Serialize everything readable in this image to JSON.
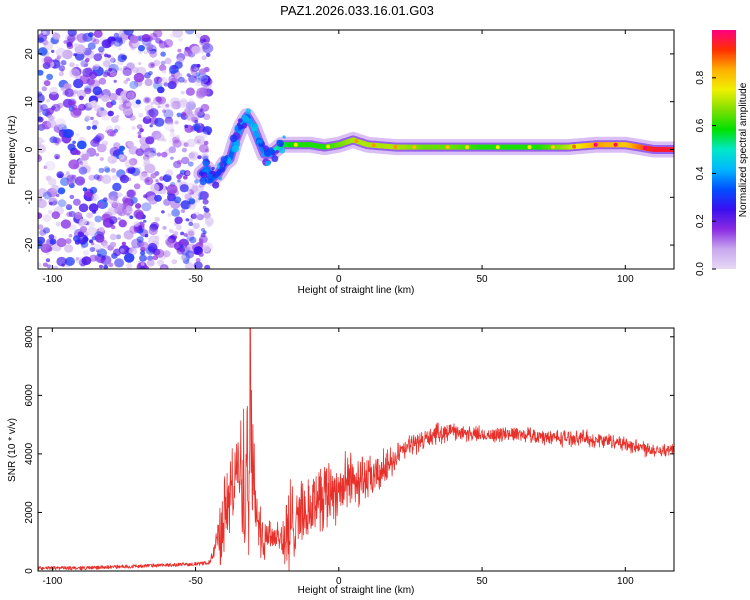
{
  "title": "PAZ1.2026.033.16.01.G03",
  "chart_data": [
    {
      "type": "heatmap",
      "panel": "top",
      "xlabel": "Height of straight line (km)",
      "ylabel": "Frequency (Hz)",
      "xlim": [
        -105,
        117
      ],
      "ylim": [
        -25,
        25
      ],
      "xticks": [
        -100,
        -50,
        0,
        50,
        100
      ],
      "yticks": [
        -20,
        -10,
        0,
        10,
        20
      ],
      "grid": false,
      "colorbar": {
        "label": "Normalized spectral amplitude",
        "range": [
          0,
          1
        ],
        "ticks": [
          "0.0",
          "0.2",
          "0.4",
          "0.6",
          "0.8"
        ],
        "colors": [
          "#e8d8f6",
          "#c8a8ee",
          "#8a2be2",
          "#3a0ff0",
          "#0050ff",
          "#00b8ff",
          "#00e8c8",
          "#00e000",
          "#80e000",
          "#f0f000",
          "#ffb000",
          "#ff3000",
          "#ff0080"
        ]
      },
      "ridge": {
        "x": [
          -48,
          -46,
          -44,
          -42,
          -40,
          -38,
          -36,
          -34,
          -32,
          -30,
          -28,
          -26,
          -24,
          -22,
          -20,
          -15,
          -10,
          -5,
          0,
          5,
          10,
          20,
          30,
          40,
          50,
          60,
          70,
          80,
          90,
          100,
          110,
          117
        ],
        "frequency": [
          -5,
          -4,
          -6,
          -5,
          -3,
          -2,
          2,
          5,
          7,
          5,
          2,
          -1,
          -1,
          0,
          1,
          1,
          1,
          0.5,
          1,
          2,
          1,
          0.5,
          0.5,
          0.5,
          0.5,
          0.5,
          0.5,
          0.5,
          1,
          1,
          0,
          0
        ],
        "amplitude": [
          0.3,
          0.35,
          0.35,
          0.3,
          0.3,
          0.35,
          0.4,
          0.4,
          0.35,
          0.45,
          0.35,
          0.4,
          0.4,
          0.5,
          0.55,
          0.6,
          0.6,
          0.6,
          0.65,
          0.7,
          0.7,
          0.7,
          0.65,
          0.65,
          0.6,
          0.6,
          0.6,
          0.7,
          0.85,
          0.8,
          0.95,
          0.95
        ]
      },
      "noise_region": {
        "x": [
          -105,
          -45
        ],
        "frequency": [
          -25,
          25
        ],
        "amplitude": [
          0,
          0.2
        ]
      }
    },
    {
      "type": "line",
      "panel": "bottom",
      "xlabel": "Height of straight line (km)",
      "ylabel": "SNR (10 * v/v)",
      "xlim": [
        -105,
        117
      ],
      "ylim": [
        0,
        8300
      ],
      "xticks": [
        -100,
        -50,
        0,
        50,
        100
      ],
      "yticks": [
        0,
        2000,
        4000,
        6000,
        8000
      ],
      "grid": false,
      "series": [
        {
          "name": "SNR",
          "color": "#e8302a",
          "x": [
            -105,
            -90,
            -75,
            -60,
            -48,
            -45,
            -43,
            -41,
            -39,
            -37,
            -35,
            -33,
            -31,
            -30,
            -29,
            -27,
            -25,
            -22,
            -20,
            -17,
            -15,
            -12,
            -10,
            -7,
            -5,
            -3,
            0,
            3,
            5,
            8,
            10,
            13,
            15,
            20,
            25,
            30,
            35,
            40,
            45,
            50,
            55,
            60,
            65,
            70,
            75,
            80,
            85,
            90,
            95,
            100,
            105,
            110,
            117
          ],
          "values": [
            100,
            100,
            150,
            200,
            250,
            300,
            900,
            1500,
            2200,
            2900,
            3500,
            3100,
            6400,
            3600,
            2200,
            1100,
            1300,
            1200,
            1100,
            1000,
            2100,
            1900,
            2100,
            2700,
            2600,
            2800,
            2800,
            3000,
            3100,
            3200,
            3100,
            3200,
            3400,
            3900,
            4300,
            4500,
            4700,
            4800,
            4700,
            4650,
            4650,
            4700,
            4650,
            4600,
            4550,
            4550,
            4550,
            4450,
            4450,
            4350,
            4250,
            4150,
            4100
          ],
          "spike_amplitude": [
            0,
            0,
            0,
            0,
            0,
            0,
            500,
            1500,
            1700,
            1600,
            1400,
            4500,
            8000,
            2500,
            1200,
            900,
            900,
            700,
            900,
            2800,
            1400,
            1200,
            1300,
            1400,
            1600,
            1500,
            1300,
            1200,
            1200,
            1100,
            900,
            800,
            800,
            500,
            400,
            400,
            400,
            300,
            300,
            300,
            300,
            300,
            300,
            300,
            300,
            300,
            300,
            300,
            300,
            300,
            300,
            300,
            300
          ]
        }
      ]
    }
  ]
}
